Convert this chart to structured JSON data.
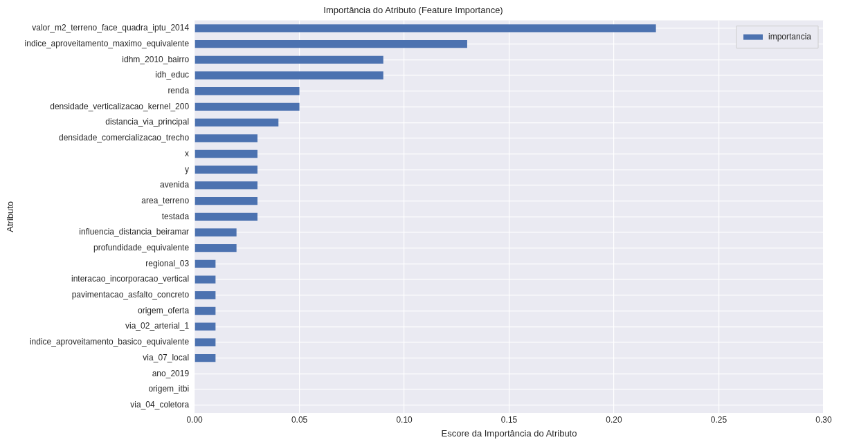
{
  "chart_data": {
    "type": "bar",
    "orientation": "horizontal",
    "title": "Importância do Atributo (Feature Importance)",
    "xlabel": "Escore da Importância do Atributo",
    "ylabel": "Atributo",
    "categories": [
      "valor_m2_terreno_face_quadra_iptu_2014",
      "indice_aproveitamento_maximo_equivalente",
      "idhm_2010_bairro",
      "idh_educ",
      "renda",
      "densidade_verticalizacao_kernel_200",
      "distancia_via_principal",
      "densidade_comercializacao_trecho",
      "x",
      "y",
      "avenida",
      "area_terreno",
      "testada",
      "influencia_distancia_beiramar",
      "profundidade_equivalente",
      "regional_03",
      "interacao_incorporacao_vertical",
      "pavimentacao_asfalto_concreto",
      "origem_oferta",
      "via_02_arterial_1",
      "indice_aproveitamento_basico_equivalente",
      "via_07_local",
      "ano_2019",
      "origem_itbi",
      "via_04_coletora"
    ],
    "series": [
      {
        "name": "importancia",
        "color": "#4c72b0",
        "values": [
          0.22,
          0.13,
          0.09,
          0.09,
          0.05,
          0.05,
          0.04,
          0.03,
          0.03,
          0.03,
          0.03,
          0.03,
          0.03,
          0.02,
          0.02,
          0.01,
          0.01,
          0.01,
          0.01,
          0.01,
          0.01,
          0.01,
          0,
          0,
          0
        ]
      }
    ],
    "xlim": [
      0,
      0.3
    ],
    "xticks": [
      {
        "value": 0,
        "label": "0.00"
      },
      {
        "value": 0.05,
        "label": "0.05"
      },
      {
        "value": 0.1,
        "label": "0.10"
      },
      {
        "value": 0.15,
        "label": "0.15"
      },
      {
        "value": 0.2,
        "label": "0.20"
      },
      {
        "value": 0.25,
        "label": "0.25"
      },
      {
        "value": 0.3,
        "label": "0.30"
      }
    ],
    "grid": true,
    "legend": "top right"
  }
}
